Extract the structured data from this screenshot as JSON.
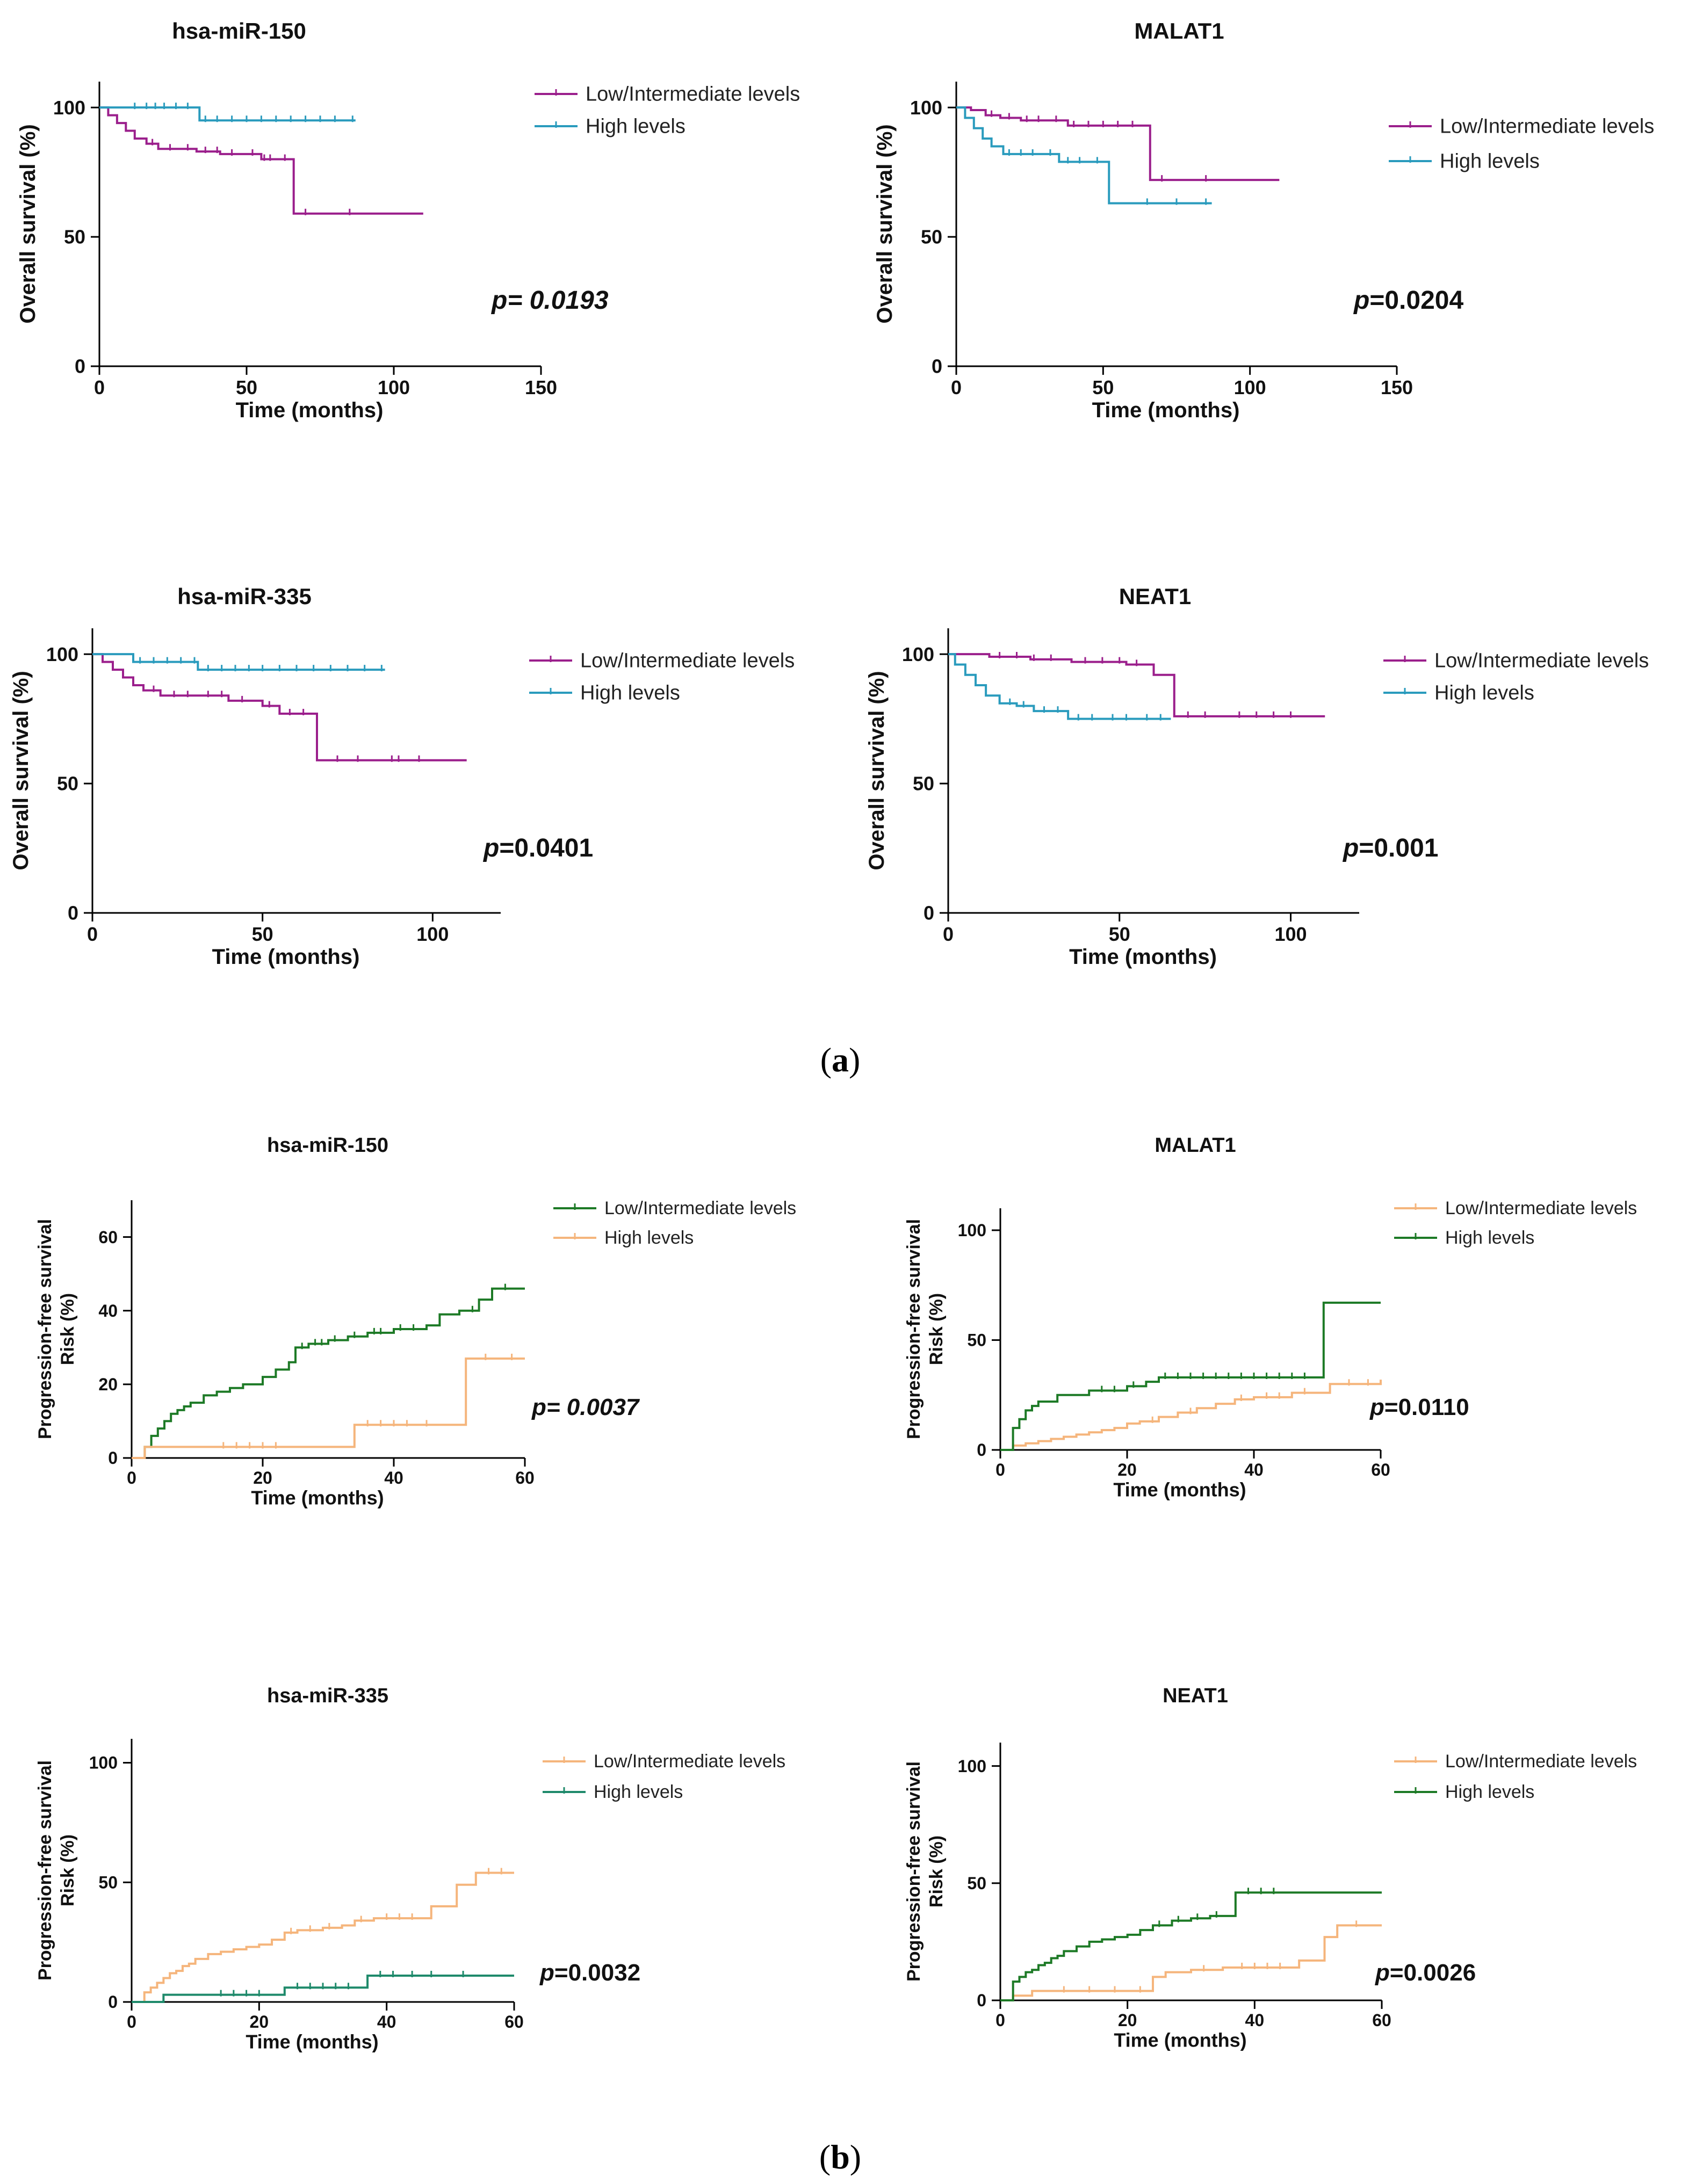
{
  "figure": {
    "panel_labels": [
      {
        "open": "(",
        "letter": "a",
        "close": ")"
      },
      {
        "open": "(",
        "letter": "b",
        "close": ")"
      }
    ]
  },
  "colors": {
    "purple": "#9b1f8c",
    "teal": "#2a9bbd",
    "darkgreen": "#1d7a26",
    "seagreen": "#1f8a6b",
    "peach": "#f5b57c",
    "axis": "#000000"
  },
  "chart_data": [
    {
      "type": "line",
      "subtype": "kaplan-meier",
      "title": "hsa-miR-150",
      "xlabel": "Time (months)",
      "ylabel": "Overall survival (%)",
      "xlim": [
        0,
        150
      ],
      "ylim": [
        0,
        110
      ],
      "xticks": [
        0,
        50,
        100,
        150
      ],
      "yticks": [
        0,
        50,
        100
      ],
      "annotation": {
        "p": "p",
        "value": "= 0.0193",
        "italic_value": true
      },
      "legend": [
        {
          "label": "Low/Intermediate levels",
          "color_key": "purple"
        },
        {
          "label": "High levels",
          "color_key": "teal"
        }
      ],
      "series": [
        {
          "name": "Low/Intermediate levels",
          "color_key": "purple",
          "x": [
            0,
            3,
            6,
            9,
            12,
            16,
            20,
            26,
            33,
            41,
            48,
            55,
            60,
            65,
            66,
            75,
            85,
            95,
            110
          ],
          "y": [
            100,
            97,
            94,
            91,
            88,
            86,
            84,
            84,
            83,
            82,
            82,
            80,
            80,
            80,
            59,
            59,
            59,
            59,
            59
          ],
          "censor_x": [
            18,
            24,
            30,
            36,
            40,
            45,
            52,
            56,
            58,
            63,
            70,
            85
          ]
        },
        {
          "name": "High levels",
          "color_key": "teal",
          "x": [
            0,
            34,
            87
          ],
          "y": [
            100,
            95,
            95
          ],
          "censor_x": [
            12,
            16,
            19,
            22,
            26,
            30,
            36,
            40,
            45,
            50,
            55,
            60,
            65,
            70,
            75,
            80,
            86
          ]
        }
      ]
    },
    {
      "type": "line",
      "subtype": "kaplan-meier",
      "title": "MALAT1",
      "xlabel": "Time (months)",
      "ylabel": "Overall survival (%)",
      "xlim": [
        0,
        150
      ],
      "ylim": [
        0,
        110
      ],
      "xticks": [
        0,
        50,
        100,
        150
      ],
      "yticks": [
        0,
        50,
        100
      ],
      "annotation": {
        "p": "p",
        "value": "=0.0204",
        "italic_value": false
      },
      "legend": [
        {
          "label": "Low/Intermediate levels",
          "color_key": "purple"
        },
        {
          "label": "High levels",
          "color_key": "teal"
        }
      ],
      "series": [
        {
          "name": "Low/Intermediate levels",
          "color_key": "purple",
          "x": [
            0,
            5,
            10,
            15,
            22,
            30,
            38,
            50,
            60,
            65,
            66,
            80,
            110
          ],
          "y": [
            100,
            99,
            97,
            96,
            95,
            95,
            93,
            93,
            93,
            93,
            72,
            72,
            72
          ],
          "censor_x": [
            12,
            18,
            24,
            28,
            34,
            40,
            45,
            50,
            55,
            60,
            70,
            85
          ]
        },
        {
          "name": "High levels",
          "color_key": "teal",
          "x": [
            0,
            3,
            6,
            9,
            12,
            16,
            28,
            35,
            50,
            52,
            87
          ],
          "y": [
            100,
            96,
            92,
            88,
            85,
            82,
            82,
            79,
            79,
            63,
            63
          ],
          "censor_x": [
            18,
            22,
            26,
            32,
            38,
            42,
            48,
            65,
            75,
            85
          ]
        }
      ]
    },
    {
      "type": "line",
      "subtype": "kaplan-meier",
      "title": "hsa-miR-335",
      "xlabel": "Time (months)",
      "ylabel": "Overall survival (%)",
      "xlim": [
        0,
        120
      ],
      "ylim": [
        0,
        110
      ],
      "xticks": [
        0,
        50,
        100
      ],
      "yticks": [
        0,
        50,
        100
      ],
      "annotation": {
        "p": "p",
        "value": "=0.0401",
        "italic_value": false
      },
      "legend": [
        {
          "label": "Low/Intermediate levels",
          "color_key": "purple"
        },
        {
          "label": "High levels",
          "color_key": "teal"
        }
      ],
      "series": [
        {
          "name": "Low/Intermediate levels",
          "color_key": "purple",
          "x": [
            0,
            3,
            6,
            9,
            12,
            15,
            20,
            30,
            40,
            50,
            55,
            60,
            65,
            66,
            75,
            90,
            110
          ],
          "y": [
            100,
            97,
            94,
            91,
            88,
            86,
            84,
            84,
            82,
            80,
            77,
            77,
            77,
            59,
            59,
            59,
            59
          ],
          "censor_x": [
            18,
            24,
            28,
            34,
            38,
            44,
            52,
            58,
            62,
            72,
            78,
            88,
            90,
            96
          ]
        },
        {
          "name": "High levels",
          "color_key": "teal",
          "x": [
            0,
            12,
            31,
            86
          ],
          "y": [
            100,
            97,
            94,
            94
          ],
          "censor_x": [
            14,
            18,
            22,
            26,
            30,
            34,
            38,
            42,
            46,
            50,
            55,
            60,
            65,
            70,
            75,
            80,
            85
          ]
        }
      ]
    },
    {
      "type": "line",
      "subtype": "kaplan-meier",
      "title": "NEAT1",
      "xlabel": "Time (months)",
      "ylabel": "Overall survival (%)",
      "xlim": [
        0,
        120
      ],
      "ylim": [
        0,
        110
      ],
      "xticks": [
        0,
        50,
        100
      ],
      "yticks": [
        0,
        50,
        100
      ],
      "annotation": {
        "p": "p",
        "value": "=0.001",
        "italic_value": false
      },
      "legend": [
        {
          "label": "Low/Intermediate levels",
          "color_key": "purple"
        },
        {
          "label": "High levels",
          "color_key": "teal"
        }
      ],
      "series": [
        {
          "name": "Low/Intermediate levels",
          "color_key": "purple",
          "x": [
            0,
            12,
            24,
            36,
            52,
            60,
            65,
            66,
            80,
            110
          ],
          "y": [
            100,
            99,
            98,
            97,
            96,
            92,
            92,
            76,
            76,
            76
          ],
          "censor_x": [
            15,
            20,
            25,
            30,
            40,
            45,
            50,
            55,
            70,
            75,
            85,
            90,
            95,
            100
          ]
        },
        {
          "name": "High levels",
          "color_key": "teal",
          "x": [
            0,
            2,
            5,
            8,
            11,
            15,
            20,
            25,
            35,
            65
          ],
          "y": [
            100,
            96,
            92,
            88,
            84,
            81,
            80,
            78,
            75,
            75
          ],
          "censor_x": [
            18,
            22,
            28,
            32,
            38,
            42,
            48,
            52,
            58,
            62
          ]
        }
      ]
    },
    {
      "type": "line",
      "subtype": "cumulative-risk",
      "title": "hsa-miR-150",
      "xlabel": "Time (months)",
      "ylabel": "Progression-free survival",
      "ylabel2": "Risk (%)",
      "xlim": [
        0,
        60
      ],
      "ylim": [
        0,
        70
      ],
      "xticks": [
        0,
        20,
        40,
        60
      ],
      "yticks": [
        0,
        20,
        40,
        60
      ],
      "annotation": {
        "p": "p",
        "value": "= 0.0037",
        "italic_value": true
      },
      "legend": [
        {
          "label": "Low/Intermediate levels",
          "color_key": "darkgreen"
        },
        {
          "label": "High levels",
          "color_key": "peach"
        }
      ],
      "series": [
        {
          "name": "Low/Intermediate levels",
          "color_key": "darkgreen",
          "x": [
            0,
            2,
            3,
            4,
            5,
            6,
            7,
            8,
            9,
            11,
            13,
            15,
            17,
            18,
            20,
            22,
            24,
            25,
            27,
            30,
            33,
            36,
            40,
            45,
            47,
            50,
            53,
            55,
            60
          ],
          "y": [
            0,
            3,
            6,
            8,
            10,
            12,
            13,
            14,
            15,
            17,
            18,
            19,
            20,
            20,
            22,
            24,
            26,
            30,
            31,
            32,
            33,
            34,
            35,
            36,
            39,
            40,
            43,
            46,
            46
          ],
          "censor_x": [
            26,
            28,
            29,
            31,
            34,
            37,
            38,
            41,
            43,
            52,
            57
          ]
        },
        {
          "name": "High levels",
          "color_key": "peach",
          "x": [
            0,
            2,
            34,
            51,
            60
          ],
          "y": [
            0,
            3,
            9,
            27,
            27
          ],
          "censor_x": [
            14,
            16,
            18,
            20,
            22,
            36,
            38,
            40,
            42,
            45,
            54,
            58
          ]
        }
      ]
    },
    {
      "type": "line",
      "subtype": "cumulative-risk",
      "title": "MALAT1",
      "xlabel": "Time (months)",
      "ylabel": "Progression-free survival",
      "ylabel2": "Risk (%)",
      "xlim": [
        0,
        60
      ],
      "ylim": [
        0,
        110
      ],
      "xticks": [
        0,
        20,
        40,
        60
      ],
      "yticks": [
        0,
        50,
        100
      ],
      "annotation": {
        "p": "p",
        "value": "=0.0110",
        "italic_value": false
      },
      "legend": [
        {
          "label": "Low/Intermediate levels",
          "color_key": "peach"
        },
        {
          "label": "High levels",
          "color_key": "darkgreen"
        }
      ],
      "series": [
        {
          "name": "Low/Intermediate levels",
          "color_key": "peach",
          "x": [
            0,
            2,
            4,
            6,
            8,
            10,
            12,
            14,
            16,
            18,
            20,
            22,
            25,
            28,
            31,
            34,
            37,
            40,
            46,
            52,
            60
          ],
          "y": [
            0,
            2,
            3,
            4,
            5,
            6,
            7,
            8,
            9,
            10,
            12,
            13,
            15,
            17,
            19,
            21,
            23,
            24,
            26,
            30,
            32
          ],
          "censor_x": [
            24,
            30,
            38,
            42,
            44,
            48,
            55,
            58
          ]
        },
        {
          "name": "High levels",
          "color_key": "darkgreen",
          "x": [
            0,
            2,
            3,
            4,
            5,
            6,
            9,
            14,
            20,
            23,
            25,
            51,
            60
          ],
          "y": [
            0,
            10,
            14,
            18,
            20,
            22,
            25,
            27,
            29,
            31,
            33,
            67,
            67
          ],
          "censor_x": [
            16,
            18,
            21,
            26,
            28,
            30,
            32,
            34,
            36,
            38,
            40,
            42,
            44,
            46,
            48
          ]
        }
      ]
    },
    {
      "type": "line",
      "subtype": "cumulative-risk",
      "title": "hsa-miR-335",
      "xlabel": "Time (months)",
      "ylabel": "Progression-free survival",
      "ylabel2": "Risk (%)",
      "xlim": [
        0,
        60
      ],
      "ylim": [
        0,
        110
      ],
      "xticks": [
        0,
        20,
        40,
        60
      ],
      "yticks": [
        0,
        50,
        100
      ],
      "annotation": {
        "p": "p",
        "value": "=0.0032",
        "italic_value": false
      },
      "legend": [
        {
          "label": "Low/Intermediate levels",
          "color_key": "peach"
        },
        {
          "label": "High levels",
          "color_key": "seagreen"
        }
      ],
      "series": [
        {
          "name": "Low/Intermediate levels",
          "color_key": "peach",
          "x": [
            0,
            2,
            3,
            4,
            5,
            6,
            7,
            8,
            9,
            10,
            12,
            14,
            16,
            18,
            20,
            22,
            24,
            26,
            30,
            33,
            35,
            38,
            47,
            51,
            54,
            60
          ],
          "y": [
            0,
            4,
            6,
            8,
            10,
            12,
            13,
            15,
            16,
            18,
            20,
            21,
            22,
            23,
            24,
            26,
            29,
            30,
            31,
            32,
            34,
            35,
            40,
            49,
            54,
            54
          ],
          "censor_x": [
            25,
            28,
            31,
            36,
            40,
            42,
            44,
            56,
            58
          ]
        },
        {
          "name": "High levels",
          "color_key": "seagreen",
          "x": [
            0,
            5,
            24,
            37,
            60
          ],
          "y": [
            0,
            3,
            6,
            11,
            11
          ],
          "censor_x": [
            14,
            16,
            18,
            20,
            26,
            28,
            30,
            32,
            34,
            39,
            41,
            44,
            47,
            52
          ]
        }
      ]
    },
    {
      "type": "line",
      "subtype": "cumulative-risk",
      "title": "NEAT1",
      "xlabel": "Time (months)",
      "ylabel": "Progression-free survival",
      "ylabel2": "Risk (%)",
      "xlim": [
        0,
        60
      ],
      "ylim": [
        0,
        110
      ],
      "xticks": [
        0,
        20,
        40,
        60
      ],
      "yticks": [
        0,
        50,
        100
      ],
      "annotation": {
        "p": "p",
        "value": "=0.0026",
        "italic_value": false
      },
      "legend": [
        {
          "label": "Low/Intermediate levels",
          "color_key": "peach"
        },
        {
          "label": "High levels",
          "color_key": "darkgreen"
        }
      ],
      "series": [
        {
          "name": "Low/Intermediate levels",
          "color_key": "peach",
          "x": [
            0,
            2,
            5,
            24,
            26,
            30,
            35,
            47,
            51,
            53,
            60
          ],
          "y": [
            0,
            2,
            4,
            10,
            12,
            13,
            14,
            17,
            27,
            32,
            32
          ],
          "censor_x": [
            10,
            14,
            18,
            22,
            32,
            38,
            40,
            42,
            44,
            56
          ]
        },
        {
          "name": "High levels",
          "color_key": "darkgreen",
          "x": [
            0,
            2,
            3,
            4,
            5,
            6,
            7,
            8,
            9,
            10,
            12,
            14,
            16,
            18,
            20,
            22,
            24,
            27,
            30,
            33,
            37,
            60
          ],
          "y": [
            0,
            8,
            10,
            12,
            13,
            15,
            16,
            18,
            19,
            21,
            23,
            25,
            26,
            27,
            28,
            30,
            32,
            34,
            35,
            36,
            46,
            46
          ],
          "censor_x": [
            25,
            28,
            31,
            34,
            39,
            41,
            43
          ]
        }
      ]
    }
  ]
}
